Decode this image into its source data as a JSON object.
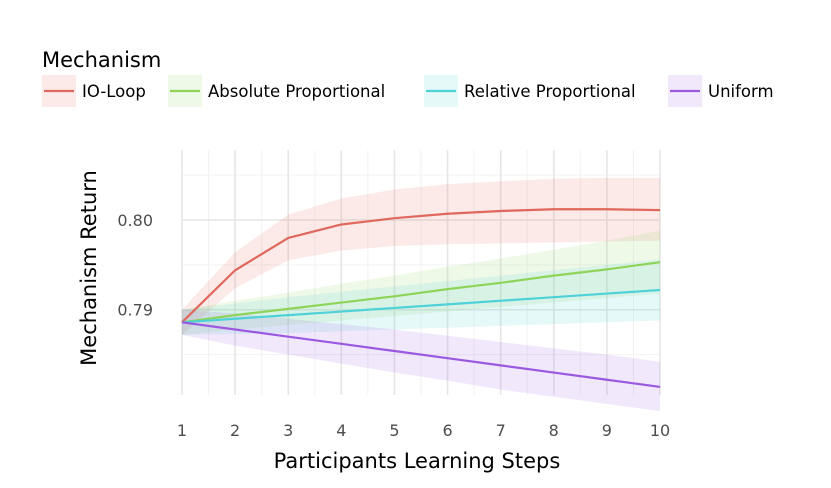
{
  "chart_data": {
    "type": "line",
    "title": "",
    "xlabel": "Participants Learning Steps",
    "ylabel": "Mechanism Return",
    "legend_title": "Mechanism",
    "legend_position": "top",
    "grid": true,
    "x": [
      1,
      2,
      3,
      4,
      5,
      6,
      7,
      8,
      9,
      10
    ],
    "x_ticks": [
      "1",
      "2",
      "3",
      "4",
      "5",
      "6",
      "7",
      "8",
      "9",
      "10"
    ],
    "y_ticks": [
      0.79,
      0.8
    ],
    "y_tick_labels": [
      "0.79",
      "0.80"
    ],
    "xlim": [
      1,
      10
    ],
    "ylim": [
      0.7805,
      0.8078
    ],
    "series": [
      {
        "name": "IO-Loop",
        "color": "#e0675c",
        "values": [
          0.7886,
          0.7944,
          0.798,
          0.7995,
          0.8002,
          0.8007,
          0.801,
          0.8012,
          0.8012,
          0.8011
        ],
        "lower": [
          0.7872,
          0.7924,
          0.7955,
          0.7966,
          0.7971,
          0.7973,
          0.7974,
          0.7975,
          0.7976,
          0.7977
        ],
        "upper": [
          0.79,
          0.7964,
          0.8006,
          0.8024,
          0.8034,
          0.804,
          0.8043,
          0.8046,
          0.8047,
          0.8047
        ]
      },
      {
        "name": "Absolute Proportional",
        "color": "#8fd45a",
        "values": [
          0.7886,
          0.7894,
          0.7901,
          0.7908,
          0.7915,
          0.7923,
          0.793,
          0.7938,
          0.7945,
          0.7953
        ],
        "lower": [
          0.7872,
          0.7878,
          0.7883,
          0.7888,
          0.7893,
          0.7898,
          0.7903,
          0.7908,
          0.7913,
          0.7918
        ],
        "upper": [
          0.79,
          0.791,
          0.7919,
          0.7929,
          0.7938,
          0.7948,
          0.7957,
          0.7967,
          0.7977,
          0.7988
        ]
      },
      {
        "name": "Relative Proportional",
        "color": "#4fd1d8",
        "values": [
          0.7886,
          0.789,
          0.7894,
          0.7898,
          0.7902,
          0.7906,
          0.791,
          0.7914,
          0.7918,
          0.7922
        ],
        "lower": [
          0.7872,
          0.7873,
          0.7874,
          0.7876,
          0.7878,
          0.788,
          0.7882,
          0.7884,
          0.7886,
          0.7888
        ],
        "upper": [
          0.79,
          0.7907,
          0.7914,
          0.792,
          0.7926,
          0.7932,
          0.7938,
          0.7944,
          0.795,
          0.7956
        ]
      },
      {
        "name": "Uniform",
        "color": "#9b59e0",
        "values": [
          0.7886,
          0.7878,
          0.787,
          0.7862,
          0.7854,
          0.7846,
          0.7838,
          0.783,
          0.7822,
          0.7814
        ],
        "lower": [
          0.7872,
          0.786,
          0.785,
          0.784,
          0.783,
          0.7821,
          0.7811,
          0.7803,
          0.7795,
          0.7787
        ],
        "upper": [
          0.79,
          0.7896,
          0.789,
          0.7884,
          0.7878,
          0.7871,
          0.7864,
          0.7857,
          0.785,
          0.7842
        ]
      }
    ]
  }
}
